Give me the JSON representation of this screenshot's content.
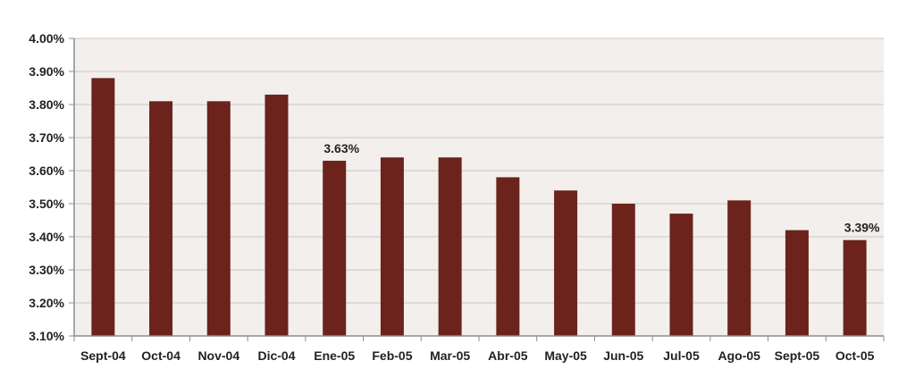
{
  "chart_data": {
    "type": "bar",
    "categories": [
      "Sept-04",
      "Oct-04",
      "Nov-04",
      "Dic-04",
      "Ene-05",
      "Feb-05",
      "Mar-05",
      "Abr-05",
      "May-05",
      "Jun-05",
      "Jul-05",
      "Ago-05",
      "Sept-05",
      "Oct-05"
    ],
    "values": [
      3.88,
      3.81,
      3.81,
      3.83,
      3.63,
      3.64,
      3.64,
      3.58,
      3.54,
      3.5,
      3.47,
      3.51,
      3.42,
      3.39
    ],
    "ylim": [
      3.1,
      4.0
    ],
    "yticks": [
      "3.10%",
      "3.20%",
      "3.30%",
      "3.40%",
      "3.50%",
      "3.60%",
      "3.70%",
      "3.80%",
      "3.90%",
      "4.00%"
    ],
    "ytick_values": [
      3.1,
      3.2,
      3.3,
      3.4,
      3.5,
      3.6,
      3.7,
      3.8,
      3.9,
      4.0
    ],
    "data_labels": [
      {
        "category": "Ene-05",
        "text": "3.63%"
      },
      {
        "category": "Oct-05",
        "text": "3.39%"
      }
    ],
    "grid": true,
    "legend": "none",
    "colors": {
      "bar": "#6b231c",
      "plot_background": "#f2efed",
      "grid": "#c9c6c4",
      "axis": "#8c8c8c"
    }
  }
}
